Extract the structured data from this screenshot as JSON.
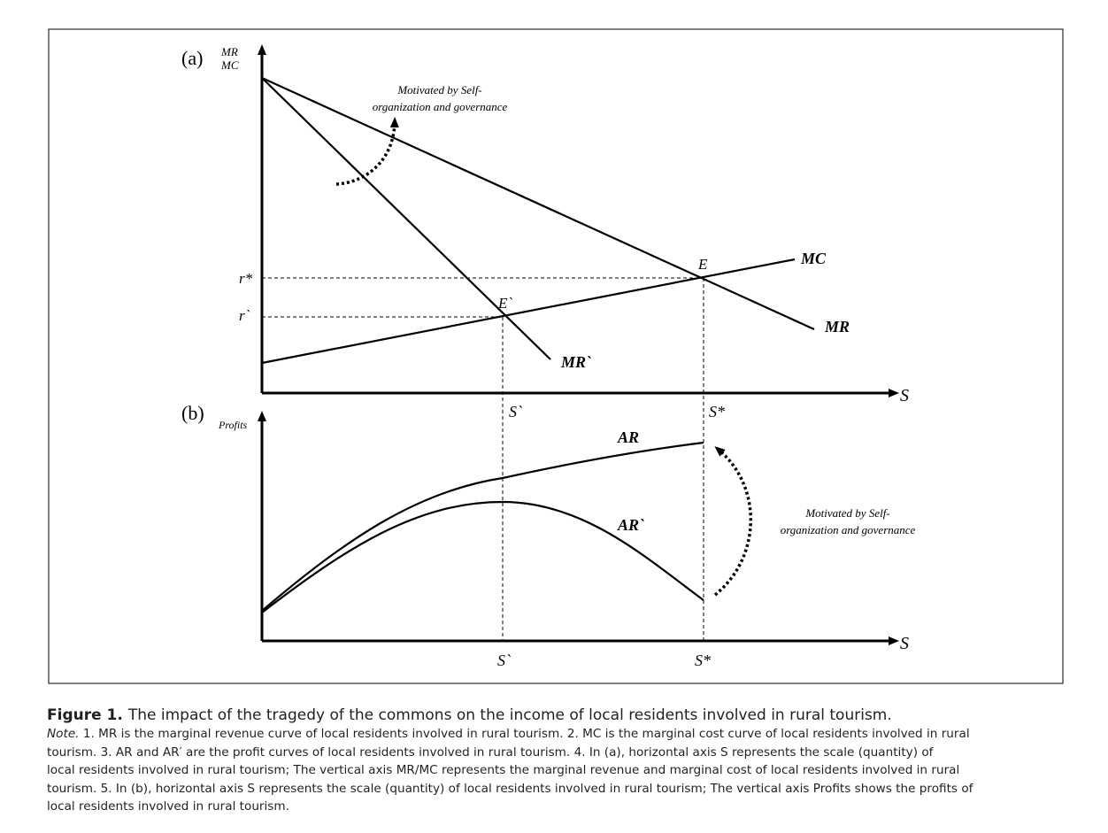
{
  "figure": {
    "panel_a": {
      "label": "(a)",
      "y_axis_label_1": "MR",
      "y_axis_label_2": "MC",
      "x_axis_label": "S",
      "annotation_line1": "Motivated by Self-",
      "annotation_line2": "organization and governance",
      "curve_labels": {
        "mc": "MC",
        "mr": "MR",
        "mr_prime": "MR`"
      },
      "point_labels": {
        "e": "E",
        "e_prime": "E`"
      },
      "y_ticks": {
        "r_star": "r*",
        "r_prime": "r`"
      },
      "x_ticks": {
        "s_prime": "S`",
        "s_star": "S*"
      }
    },
    "panel_b": {
      "label": "(b)",
      "y_axis_label": "Profits",
      "x_axis_label": "S",
      "annotation_line1": "Motivated by Self-",
      "annotation_line2": "organization and governance",
      "curve_labels": {
        "ar": "AR",
        "ar_prime": "AR`"
      },
      "x_ticks": {
        "s_prime": "S`",
        "s_star": "S*"
      }
    }
  },
  "caption": {
    "number": "Figure 1.",
    "title": "The impact of the tragedy of the commons on the income of local residents involved in rural tourism.",
    "note_label": "Note.",
    "note_lines": [
      " 1. MR is the marginal revenue curve of local residents involved in rural tourism. 2. MC is the marginal cost curve of local residents involved in rural",
      "tourism. 3. AR and AR′ are the profit curves of local residents involved in rural tourism. 4. In (a), horizontal axis S represents the scale (quantity) of",
      "local residents involved in rural tourism; The vertical axis MR/MC represents the marginal revenue and marginal cost of local residents involved in rural",
      "tourism. 5. In (b), horizontal axis S represents the scale (quantity) of local residents involved in rural tourism; The vertical axis Profits shows the profits of",
      "local residents involved in rural tourism."
    ]
  }
}
